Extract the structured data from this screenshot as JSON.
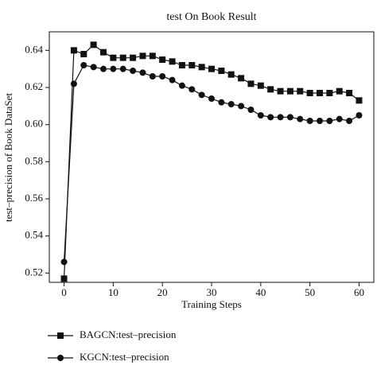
{
  "chart_data": {
    "type": "line",
    "title": "test On Book Result",
    "x_label": "Training Steps",
    "y_label": "test–precision of Book DataSet",
    "x": [
      0,
      2,
      4,
      6,
      8,
      10,
      12,
      14,
      16,
      18,
      20,
      22,
      24,
      26,
      28,
      30,
      32,
      34,
      36,
      38,
      40,
      42,
      44,
      46,
      48,
      50,
      52,
      54,
      56,
      58,
      60
    ],
    "series": [
      {
        "name": "BAGCN:test–precision",
        "color": "#111111",
        "marker": "square",
        "values": [
          0.517,
          0.64,
          0.638,
          0.643,
          0.639,
          0.636,
          0.636,
          0.636,
          0.637,
          0.637,
          0.635,
          0.634,
          0.632,
          0.632,
          0.631,
          0.63,
          0.629,
          0.627,
          0.625,
          0.622,
          0.621,
          0.619,
          0.618,
          0.618,
          0.618,
          0.617,
          0.617,
          0.617,
          0.618,
          0.617,
          0.613
        ]
      },
      {
        "name": "KGCN:test–precision",
        "color": "#111111",
        "marker": "circle",
        "values": [
          0.526,
          0.622,
          0.632,
          0.631,
          0.63,
          0.63,
          0.63,
          0.629,
          0.628,
          0.626,
          0.626,
          0.624,
          0.621,
          0.619,
          0.616,
          0.614,
          0.612,
          0.611,
          0.61,
          0.608,
          0.605,
          0.604,
          0.604,
          0.604,
          0.603,
          0.602,
          0.602,
          0.602,
          0.603,
          0.602,
          0.605
        ]
      }
    ],
    "xlim": [
      -3,
      63
    ],
    "xticks": [
      0,
      10,
      20,
      30,
      40,
      50,
      60
    ],
    "ylim": [
      0.515,
      0.65
    ],
    "yticks": [
      0.52,
      0.54,
      0.56,
      0.58,
      {
        "value": 0.6,
        "label": "0.60"
      },
      0.62,
      0.64
    ],
    "legend": "below"
  }
}
